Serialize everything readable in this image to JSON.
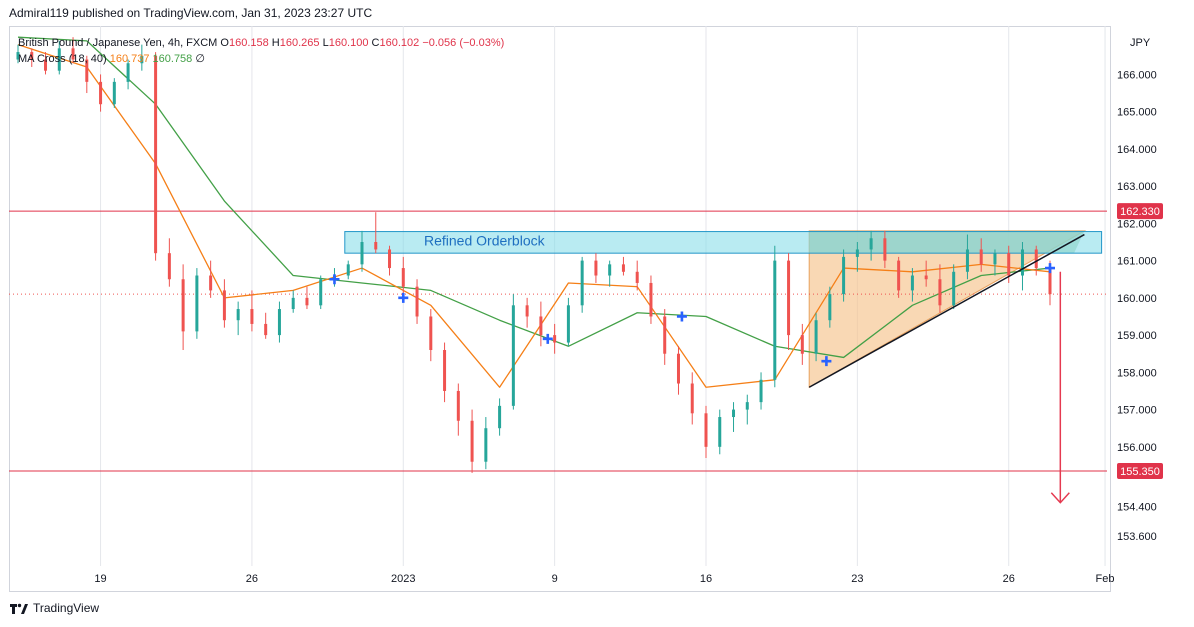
{
  "publisher": "Admiral119 published on TradingView.com, Jan 31, 2023 23:27 UTC",
  "legend": {
    "symbol": "British Pound / Japanese Yen, 4h, FXCM",
    "o_label": "O",
    "o_value": "160.158",
    "h_label": "H",
    "h_value": "160.265",
    "l_label": "L",
    "l_value": "160.100",
    "c_label": "C",
    "c_value": "160.102",
    "change": "−0.056 (−0.03%)",
    "ma_label": "MA Cross (18, 40)",
    "ma_fast": "160.737",
    "ma_slow": "160.758",
    "ma_flag": "∅"
  },
  "footer": {
    "brand": "TradingView"
  },
  "colors": {
    "up": "#26a69a",
    "down": "#ef5350",
    "ma_fast": "#f57f17",
    "ma_slow": "#43a047",
    "levels": "#e0334a",
    "orderblock_fill": "#7fdbe8",
    "orderblock_border": "#2196c9",
    "cross_marker": "#2962ff",
    "triangle_fill": "#f6c38c",
    "triangle_top_fill": "#9cc9a4"
  },
  "chart_data": {
    "type": "candlestick",
    "currency": "JPY",
    "ylim": [
      152.8,
      167.3
    ],
    "y_ticks": [
      153.6,
      154.4,
      155.35,
      156.0,
      157.0,
      158.0,
      159.0,
      160.0,
      161.0,
      162.0,
      162.33,
      163.0,
      164.0,
      165.0,
      166.0
    ],
    "y_tick_labels": [
      "153.600",
      "154.400",
      "155.350",
      "156.000",
      "157.000",
      "158.000",
      "159.000",
      "160.000",
      "161.000",
      "162.000",
      "162.330",
      "163.000",
      "164.000",
      "165.000",
      "166.000"
    ],
    "x_range": [
      0,
      30
    ],
    "x_ticks": [
      2.4,
      6.8,
      11.2,
      15.6,
      20.0,
      24.4,
      28.8,
      31.6
    ],
    "x_tick_labels": [
      "19",
      "26",
      "2023",
      "9",
      "16",
      "23",
      "26",
      "Feb"
    ],
    "last_price": 160.102,
    "levels": [
      {
        "price": 162.33,
        "label": "162.330"
      },
      {
        "price": 155.35,
        "label": "155.350"
      }
    ],
    "orderblock": {
      "label": "Refined Orderblock",
      "x0": 9.5,
      "x1": 31.5,
      "top": 161.78,
      "bottom": 161.2
    },
    "ohlc": [
      [
        0.0,
        166.4,
        166.8,
        166.3,
        166.6
      ],
      [
        0.4,
        166.6,
        166.7,
        166.2,
        166.4
      ],
      [
        0.8,
        166.4,
        166.6,
        166.0,
        166.1
      ],
      [
        1.2,
        166.1,
        166.9,
        166.0,
        166.7
      ],
      [
        1.6,
        166.7,
        167.0,
        166.3,
        166.4
      ],
      [
        2.0,
        166.4,
        166.5,
        165.5,
        165.8
      ],
      [
        2.4,
        165.8,
        166.0,
        165.0,
        165.2
      ],
      [
        2.8,
        165.2,
        165.9,
        165.1,
        165.8
      ],
      [
        3.2,
        165.8,
        166.4,
        165.6,
        166.3
      ],
      [
        3.6,
        166.3,
        166.8,
        166.1,
        166.5
      ],
      [
        4.0,
        166.5,
        166.6,
        161.0,
        161.2
      ],
      [
        4.4,
        161.2,
        161.6,
        160.3,
        160.5
      ],
      [
        4.8,
        160.5,
        160.9,
        158.6,
        159.1
      ],
      [
        5.2,
        159.1,
        160.8,
        158.9,
        160.6
      ],
      [
        5.6,
        160.6,
        161.0,
        160.0,
        160.2
      ],
      [
        6.0,
        160.2,
        160.5,
        159.2,
        159.4
      ],
      [
        6.4,
        159.4,
        159.9,
        159.0,
        159.7
      ],
      [
        6.8,
        159.7,
        160.2,
        159.1,
        159.3
      ],
      [
        7.2,
        159.3,
        159.6,
        158.9,
        159.0
      ],
      [
        7.6,
        159.0,
        159.9,
        158.8,
        159.7
      ],
      [
        8.0,
        159.7,
        160.2,
        159.6,
        160.0
      ],
      [
        8.4,
        160.0,
        160.3,
        159.7,
        159.8
      ],
      [
        8.8,
        159.8,
        160.6,
        159.7,
        160.5
      ],
      [
        9.2,
        160.5,
        160.8,
        160.3,
        160.6
      ],
      [
        9.6,
        160.6,
        161.0,
        160.5,
        160.9
      ],
      [
        10.0,
        160.9,
        161.8,
        160.7,
        161.5
      ],
      [
        10.4,
        161.5,
        162.3,
        161.2,
        161.3
      ],
      [
        10.8,
        161.3,
        161.4,
        160.6,
        160.8
      ],
      [
        11.2,
        160.8,
        161.1,
        160.1,
        160.3
      ],
      [
        11.6,
        160.3,
        160.5,
        159.3,
        159.5
      ],
      [
        12.0,
        159.5,
        159.7,
        158.3,
        158.6
      ],
      [
        12.4,
        158.6,
        158.8,
        157.2,
        157.5
      ],
      [
        12.8,
        157.5,
        157.7,
        156.3,
        156.7
      ],
      [
        13.2,
        156.7,
        157.0,
        155.3,
        155.6
      ],
      [
        13.6,
        155.6,
        156.8,
        155.4,
        156.5
      ],
      [
        14.0,
        156.5,
        157.3,
        156.3,
        157.1
      ],
      [
        14.4,
        157.1,
        160.1,
        157.0,
        159.8
      ],
      [
        14.8,
        159.8,
        160.0,
        159.2,
        159.5
      ],
      [
        15.2,
        159.5,
        159.9,
        158.7,
        159.0
      ],
      [
        15.6,
        159.0,
        159.3,
        158.5,
        158.8
      ],
      [
        16.0,
        158.8,
        160.0,
        158.7,
        159.8
      ],
      [
        16.4,
        159.8,
        161.1,
        159.6,
        161.0
      ],
      [
        16.8,
        161.0,
        161.2,
        160.4,
        160.6
      ],
      [
        17.2,
        160.6,
        161.0,
        160.3,
        160.9
      ],
      [
        17.6,
        160.9,
        161.1,
        160.6,
        160.7
      ],
      [
        18.0,
        160.7,
        161.0,
        160.2,
        160.4
      ],
      [
        18.4,
        160.4,
        160.6,
        159.3,
        159.5
      ],
      [
        18.8,
        159.5,
        159.7,
        158.2,
        158.5
      ],
      [
        19.2,
        158.5,
        158.7,
        157.4,
        157.7
      ],
      [
        19.6,
        157.7,
        158.0,
        156.6,
        156.9
      ],
      [
        20.0,
        156.9,
        157.1,
        155.7,
        156.0
      ],
      [
        20.4,
        156.0,
        157.0,
        155.8,
        156.8
      ],
      [
        20.8,
        156.8,
        157.2,
        156.4,
        157.0
      ],
      [
        21.2,
        157.0,
        157.4,
        156.6,
        157.2
      ],
      [
        21.6,
        157.2,
        158.0,
        157.0,
        157.8
      ],
      [
        22.0,
        157.8,
        161.4,
        157.6,
        161.0
      ],
      [
        22.4,
        161.0,
        161.2,
        158.6,
        159.0
      ],
      [
        22.8,
        159.0,
        159.3,
        158.2,
        158.5
      ],
      [
        23.2,
        158.5,
        159.6,
        158.3,
        159.4
      ],
      [
        23.6,
        159.4,
        160.3,
        159.2,
        160.1
      ],
      [
        24.0,
        160.1,
        161.3,
        159.9,
        161.1
      ],
      [
        24.4,
        161.1,
        161.5,
        160.7,
        161.3
      ],
      [
        24.8,
        161.3,
        161.8,
        161.0,
        161.6
      ],
      [
        25.2,
        161.6,
        161.8,
        160.8,
        161.0
      ],
      [
        25.6,
        161.0,
        161.1,
        160.0,
        160.2
      ],
      [
        26.0,
        160.2,
        160.8,
        159.9,
        160.6
      ],
      [
        26.4,
        160.6,
        161.0,
        160.3,
        160.5
      ],
      [
        26.8,
        160.5,
        160.9,
        159.6,
        159.8
      ],
      [
        27.2,
        159.8,
        160.9,
        159.7,
        160.7
      ],
      [
        27.6,
        160.7,
        161.7,
        160.5,
        161.3
      ],
      [
        28.0,
        161.3,
        161.6,
        160.7,
        160.9
      ],
      [
        28.4,
        160.9,
        161.3,
        160.6,
        161.2
      ],
      [
        28.8,
        161.2,
        161.4,
        160.4,
        160.6
      ],
      [
        29.2,
        160.6,
        161.5,
        160.2,
        161.3
      ],
      [
        29.6,
        161.3,
        161.4,
        160.6,
        160.8
      ],
      [
        30.0,
        160.8,
        161.0,
        159.8,
        160.1
      ]
    ],
    "ma_fast": {
      "name": "MA 18",
      "x": [
        0,
        2,
        4,
        6,
        8,
        10,
        12,
        14,
        16,
        18,
        20,
        22,
        24,
        26,
        28,
        30
      ],
      "y": [
        166.8,
        166.2,
        163.6,
        160.0,
        160.2,
        160.8,
        159.8,
        157.6,
        160.4,
        160.3,
        157.6,
        157.8,
        160.8,
        160.7,
        160.9,
        160.7
      ]
    },
    "ma_slow": {
      "name": "MA 40",
      "x": [
        0,
        2,
        4,
        6,
        8,
        10,
        12,
        14,
        16,
        18,
        20,
        22,
        24,
        26,
        28,
        30
      ],
      "y": [
        167.0,
        166.9,
        165.2,
        162.6,
        160.6,
        160.4,
        160.2,
        159.4,
        158.7,
        159.6,
        159.5,
        158.7,
        158.4,
        159.8,
        160.6,
        160.8
      ]
    },
    "cross_markers": [
      [
        9.2,
        160.5
      ],
      [
        11.2,
        160.0
      ],
      [
        15.4,
        158.9
      ],
      [
        19.3,
        159.5
      ],
      [
        23.5,
        158.3
      ],
      [
        30.0,
        160.8
      ]
    ],
    "triangle": {
      "apex_x": 23.0,
      "apex_y": 157.6,
      "top_right_x": 31.0,
      "top_y": 161.8,
      "right_bottom_y": 161.6
    },
    "trend_line": {
      "x0": 23.0,
      "y0": 157.6,
      "x1": 31.0,
      "y1": 161.7
    },
    "projection_arrow": {
      "x": 30.3,
      "from": 160.7,
      "to": 154.5
    }
  }
}
